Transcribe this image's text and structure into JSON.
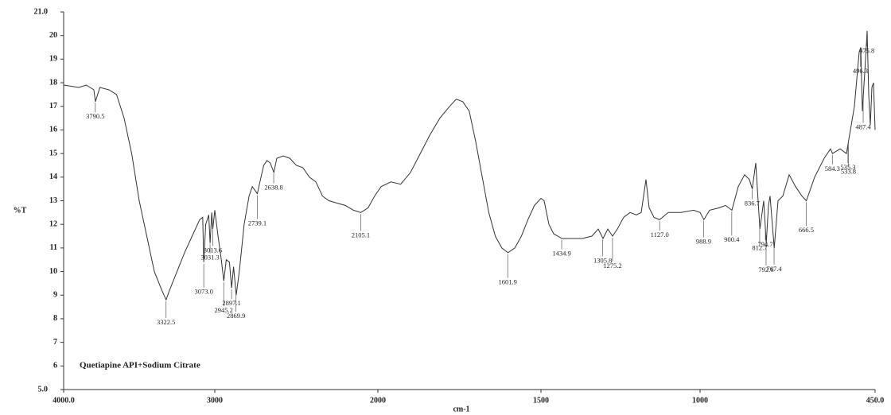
{
  "chart_data": {
    "type": "line",
    "x_label": "cm-1",
    "y_label": "%T",
    "annotation": "Quetiapine API+Sodium Citrate",
    "xlim": [
      4000,
      450
    ],
    "xticks": [
      {
        "value": 4000,
        "label": "4000.0"
      },
      3000,
      2000,
      1500,
      1000,
      {
        "value": 450,
        "label": "450.0"
      }
    ],
    "ylim": [
      5,
      21
    ],
    "yticks": [
      {
        "value": 5,
        "label": "5.0"
      },
      6,
      7,
      8,
      9,
      10,
      11,
      12,
      13,
      14,
      15,
      16,
      17,
      18,
      19,
      20,
      {
        "value": 21,
        "label": "21.0"
      }
    ],
    "color": "#333333",
    "x": [
      4000,
      3900,
      3850,
      3800,
      3790,
      3760,
      3700,
      3650,
      3600,
      3550,
      3500,
      3450,
      3400,
      3350,
      3322,
      3300,
      3250,
      3200,
      3150,
      3100,
      3080,
      3073,
      3060,
      3040,
      3031,
      3020,
      3013,
      3000,
      2980,
      2960,
      2945,
      2930,
      2910,
      2897,
      2885,
      2869,
      2850,
      2820,
      2790,
      2770,
      2739,
      2720,
      2700,
      2680,
      2660,
      2638,
      2620,
      2580,
      2540,
      2500,
      2460,
      2420,
      2380,
      2340,
      2300,
      2250,
      2200,
      2150,
      2105,
      2060,
      2020,
      1990,
      1960,
      1930,
      1900,
      1870,
      1840,
      1810,
      1780,
      1760,
      1740,
      1720,
      1700,
      1680,
      1660,
      1640,
      1620,
      1601,
      1580,
      1560,
      1540,
      1520,
      1500,
      1490,
      1475,
      1460,
      1434,
      1400,
      1370,
      1340,
      1320,
      1305,
      1290,
      1275,
      1260,
      1240,
      1220,
      1200,
      1185,
      1170,
      1160,
      1145,
      1127,
      1100,
      1060,
      1020,
      1000,
      988,
      970,
      940,
      920,
      900,
      880,
      860,
      845,
      836,
      825,
      812,
      800,
      792,
      785,
      780,
      767,
      755,
      740,
      720,
      700,
      680,
      666,
      640,
      610,
      590,
      584,
      560,
      540,
      530,
      515,
      500,
      495,
      490,
      480,
      475,
      470,
      465,
      460,
      455,
      450
    ],
    "y": [
      17.9,
      17.8,
      17.9,
      17.7,
      17.2,
      17.8,
      17.7,
      17.5,
      16.5,
      15,
      13,
      11.5,
      10,
      9.2,
      8.8,
      9.2,
      10,
      10.8,
      11.5,
      12.2,
      12.3,
      10.4,
      12,
      12.4,
      11.2,
      12.5,
      11.8,
      12.6,
      11.5,
      10.5,
      9.6,
      10.5,
      10.4,
      9.3,
      10.2,
      9,
      10,
      12,
      13.2,
      13.6,
      13.3,
      13.9,
      14.5,
      14.7,
      14.6,
      14.2,
      14.8,
      14.9,
      14.8,
      14.5,
      14.4,
      14,
      13.8,
      13.2,
      13,
      12.9,
      12.8,
      12.6,
      12.5,
      12.7,
      13.2,
      13.6,
      13.8,
      13.7,
      14.2,
      15,
      15.8,
      16.5,
      17,
      17.3,
      17.2,
      16.8,
      15.5,
      14,
      12.5,
      11.5,
      11,
      10.8,
      11,
      11.5,
      12.2,
      12.8,
      13.1,
      13,
      12,
      11.6,
      11.4,
      11.4,
      11.4,
      11.5,
      11.8,
      11.4,
      11.8,
      11.5,
      11.8,
      12.3,
      12.5,
      12.4,
      12.5,
      13.9,
      12.7,
      12.3,
      12.2,
      12.5,
      12.5,
      12.6,
      12.5,
      12.2,
      12.6,
      12.7,
      12.8,
      12.6,
      13.6,
      14.1,
      13.9,
      13.5,
      14.6,
      11.8,
      13,
      11.2,
      12.8,
      13.2,
      11,
      13,
      13.2,
      14.1,
      13.6,
      13.2,
      13,
      14,
      14.8,
      15.2,
      15,
      15.2,
      15,
      15.8,
      17,
      19.3,
      19.5,
      16.8,
      19,
      20.2,
      17.5,
      16.2,
      17.8,
      18,
      16
    ],
    "peaks": {
      "x": [
        3790.5,
        3322.5,
        3073.0,
        3031.3,
        3013.6,
        2945.2,
        2897.1,
        2869.9,
        2739.1,
        2638.8,
        2105.1,
        1601.9,
        1434.9,
        1305.8,
        1275.2,
        1127.0,
        988.9,
        900.4,
        836.7,
        812.7,
        792.6,
        794.7,
        767.4,
        666.5,
        584.3,
        535.3,
        533.8,
        475.8,
        496.3,
        487.4
      ],
      "value_labels": [
        "3790.5",
        "3322.5",
        "3073.0",
        "3031.3",
        "3013.6",
        "2945.2",
        "2897.1",
        "2869.9",
        "2739.1",
        "2638.8",
        "2105.1",
        "1601.9",
        "1434.9",
        "1305.8",
        "1275.2",
        "1127.0",
        "988.9",
        "900.4",
        "836.7",
        "812.7",
        "792.6",
        "794.7",
        "767.4",
        "666.5",
        "584.3",
        "535.3",
        "533.8",
        "475.8",
        "496.3",
        "487.4"
      ]
    }
  }
}
